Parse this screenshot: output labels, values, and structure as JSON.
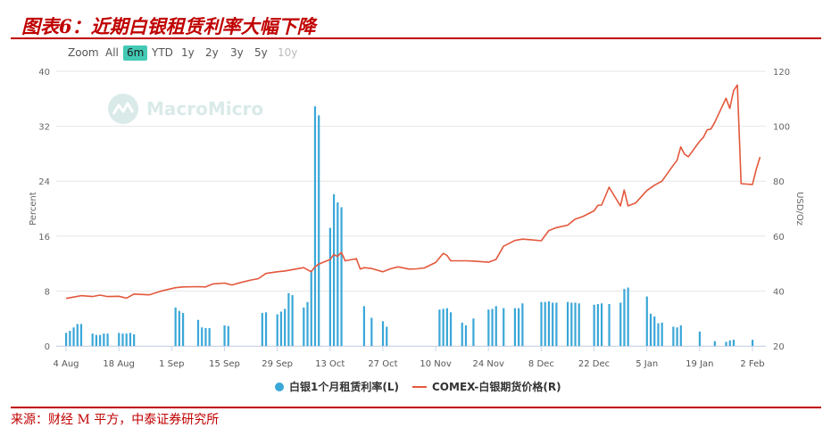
{
  "header": {
    "title": "图表6：近期白银租赁利率大幅下降"
  },
  "footer": {
    "source": "来源：财经 M 平方，中泰证券研究所"
  },
  "range_selector": {
    "zoom_label": "Zoom",
    "buttons": [
      "All",
      "6m",
      "YTD",
      "1y",
      "2y",
      "3y",
      "5y",
      "10y"
    ],
    "active": "6m",
    "disabled": [
      "10y"
    ]
  },
  "watermark": {
    "text": "MacroMicro"
  },
  "colors": {
    "bar": "#3aa7d8",
    "line": "#e3583c",
    "accent": "#43c9b4",
    "title": "#c00000"
  },
  "chart_data": {
    "type": "bar+line",
    "left_axis": {
      "label": "Percent",
      "ticks": [
        "0",
        "8",
        "16",
        "24",
        "32",
        "40"
      ],
      "ylim": [
        0,
        40
      ]
    },
    "right_axis": {
      "label": "USD/Oz",
      "ticks": [
        "20",
        "40",
        "60",
        "80",
        "100",
        "120"
      ],
      "ylim": [
        20,
        120
      ]
    },
    "x_axis": {
      "range": [
        "2025-08-04",
        "2026-02-04"
      ],
      "ticks": [
        {
          "label": "4 Aug",
          "date": "2025-08-04"
        },
        {
          "label": "18 Aug",
          "date": "2025-08-18"
        },
        {
          "label": "1 Sep",
          "date": "2025-09-01"
        },
        {
          "label": "15 Sep",
          "date": "2025-09-15"
        },
        {
          "label": "29 Sep",
          "date": "2025-09-29"
        },
        {
          "label": "13 Oct",
          "date": "2025-10-13"
        },
        {
          "label": "27 Oct",
          "date": "2025-10-27"
        },
        {
          "label": "10 Nov",
          "date": "2025-11-10"
        },
        {
          "label": "24 Nov",
          "date": "2025-11-24"
        },
        {
          "label": "8 Dec",
          "date": "2025-12-08"
        },
        {
          "label": "22 Dec",
          "date": "2025-12-22"
        },
        {
          "label": "5 Jan",
          "date": "2026-01-05"
        },
        {
          "label": "19 Jan",
          "date": "2026-01-19"
        },
        {
          "label": "2 Feb",
          "date": "2026-02-02"
        }
      ]
    },
    "series": [
      {
        "name": "白银1个月租赁利率(L)",
        "type": "bar",
        "axis": "left",
        "data": [
          [
            "2025-08-04",
            1.9
          ],
          [
            "2025-08-05",
            2.2
          ],
          [
            "2025-08-06",
            2.7
          ],
          [
            "2025-08-07",
            3.2
          ],
          [
            "2025-08-08",
            3.2
          ],
          [
            "2025-08-11",
            1.8
          ],
          [
            "2025-08-12",
            1.6
          ],
          [
            "2025-08-13",
            1.6
          ],
          [
            "2025-08-14",
            1.8
          ],
          [
            "2025-08-15",
            1.8
          ],
          [
            "2025-08-18",
            1.9
          ],
          [
            "2025-08-19",
            1.8
          ],
          [
            "2025-08-20",
            1.8
          ],
          [
            "2025-08-21",
            1.9
          ],
          [
            "2025-08-22",
            1.7
          ],
          [
            "2025-08-25",
            0.0
          ],
          [
            "2025-08-26",
            0.0
          ],
          [
            "2025-08-27",
            0.0
          ],
          [
            "2025-08-28",
            0.0
          ],
          [
            "2025-08-29",
            0.0
          ],
          [
            "2025-09-02",
            5.6
          ],
          [
            "2025-09-03",
            5.1
          ],
          [
            "2025-09-04",
            4.8
          ],
          [
            "2025-09-08",
            3.8
          ],
          [
            "2025-09-09",
            2.7
          ],
          [
            "2025-09-10",
            2.6
          ],
          [
            "2025-09-11",
            2.6
          ],
          [
            "2025-09-15",
            3.0
          ],
          [
            "2025-09-16",
            2.9
          ],
          [
            "2025-09-25",
            4.8
          ],
          [
            "2025-09-26",
            4.9
          ],
          [
            "2025-09-29",
            4.6
          ],
          [
            "2025-09-30",
            5.0
          ],
          [
            "2025-10-01",
            5.4
          ],
          [
            "2025-10-02",
            7.7
          ],
          [
            "2025-10-03",
            7.4
          ],
          [
            "2025-10-06",
            5.6
          ],
          [
            "2025-10-07",
            6.4
          ],
          [
            "2025-10-08",
            11.0
          ],
          [
            "2025-10-09",
            34.9
          ],
          [
            "2025-10-10",
            33.6
          ],
          [
            "2025-10-13",
            17.2
          ],
          [
            "2025-10-14",
            22.1
          ],
          [
            "2025-10-15",
            20.9
          ],
          [
            "2025-10-16",
            20.2
          ],
          [
            "2025-10-22",
            5.8
          ],
          [
            "2025-10-24",
            4.1
          ],
          [
            "2025-10-27",
            3.6
          ],
          [
            "2025-10-28",
            2.8
          ],
          [
            "2025-11-11",
            5.3
          ],
          [
            "2025-11-12",
            5.4
          ],
          [
            "2025-11-13",
            5.5
          ],
          [
            "2025-11-14",
            4.9
          ],
          [
            "2025-11-17",
            3.4
          ],
          [
            "2025-11-18",
            3.0
          ],
          [
            "2025-11-20",
            4.0
          ],
          [
            "2025-11-24",
            5.3
          ],
          [
            "2025-11-25",
            5.4
          ],
          [
            "2025-11-26",
            5.8
          ],
          [
            "2025-11-28",
            5.5
          ],
          [
            "2025-12-01",
            5.5
          ],
          [
            "2025-12-02",
            5.5
          ],
          [
            "2025-12-03",
            6.2
          ],
          [
            "2025-12-08",
            6.4
          ],
          [
            "2025-12-09",
            6.4
          ],
          [
            "2025-12-10",
            6.5
          ],
          [
            "2025-12-11",
            6.3
          ],
          [
            "2025-12-12",
            6.3
          ],
          [
            "2025-12-15",
            6.4
          ],
          [
            "2025-12-16",
            6.3
          ],
          [
            "2025-12-17",
            6.3
          ],
          [
            "2025-12-18",
            6.2
          ],
          [
            "2025-12-22",
            6.0
          ],
          [
            "2025-12-23",
            6.1
          ],
          [
            "2025-12-24",
            6.2
          ],
          [
            "2025-12-26",
            6.1
          ],
          [
            "2025-12-29",
            6.3
          ],
          [
            "2025-12-30",
            8.3
          ],
          [
            "2025-12-31",
            8.5
          ],
          [
            "2026-01-05",
            7.2
          ],
          [
            "2026-01-06",
            4.7
          ],
          [
            "2026-01-07",
            4.3
          ],
          [
            "2026-01-08",
            3.3
          ],
          [
            "2026-01-09",
            3.4
          ],
          [
            "2026-01-12",
            2.8
          ],
          [
            "2026-01-13",
            2.7
          ],
          [
            "2026-01-14",
            3.0
          ],
          [
            "2026-01-19",
            2.1
          ],
          [
            "2026-01-23",
            0.7
          ],
          [
            "2026-01-26",
            0.6
          ],
          [
            "2026-01-27",
            0.8
          ],
          [
            "2026-01-28",
            0.9
          ],
          [
            "2026-02-02",
            0.9
          ]
        ]
      },
      {
        "name": "COMEX-白银期货价格(R)",
        "type": "line",
        "axis": "right",
        "data": [
          [
            "2025-08-04",
            37.3
          ],
          [
            "2025-08-06",
            37.8
          ],
          [
            "2025-08-08",
            38.3
          ],
          [
            "2025-08-11",
            38.0
          ],
          [
            "2025-08-13",
            38.5
          ],
          [
            "2025-08-15",
            38.0
          ],
          [
            "2025-08-18",
            38.1
          ],
          [
            "2025-08-20",
            37.4
          ],
          [
            "2025-08-22",
            38.9
          ],
          [
            "2025-08-26",
            38.6
          ],
          [
            "2025-08-29",
            39.9
          ],
          [
            "2025-09-02",
            41.2
          ],
          [
            "2025-09-04",
            41.5
          ],
          [
            "2025-09-08",
            41.6
          ],
          [
            "2025-09-10",
            41.5
          ],
          [
            "2025-09-12",
            42.6
          ],
          [
            "2025-09-15",
            42.9
          ],
          [
            "2025-09-17",
            42.2
          ],
          [
            "2025-09-19",
            43.0
          ],
          [
            "2025-09-22",
            44.0
          ],
          [
            "2025-09-24",
            44.5
          ],
          [
            "2025-09-26",
            46.4
          ],
          [
            "2025-09-29",
            47.0
          ],
          [
            "2025-10-01",
            47.3
          ],
          [
            "2025-10-03",
            47.8
          ],
          [
            "2025-10-06",
            48.5
          ],
          [
            "2025-10-08",
            47.0
          ],
          [
            "2025-10-09",
            48.8
          ],
          [
            "2025-10-10",
            49.8
          ],
          [
            "2025-10-13",
            51.5
          ],
          [
            "2025-10-14",
            53.3
          ],
          [
            "2025-10-15",
            52.6
          ],
          [
            "2025-10-16",
            54.1
          ],
          [
            "2025-10-17",
            51.0
          ],
          [
            "2025-10-20",
            51.8
          ],
          [
            "2025-10-21",
            48.0
          ],
          [
            "2025-10-22",
            48.5
          ],
          [
            "2025-10-24",
            48.2
          ],
          [
            "2025-10-27",
            47.0
          ],
          [
            "2025-10-29",
            48.1
          ],
          [
            "2025-10-31",
            48.8
          ],
          [
            "2025-11-03",
            48.0
          ],
          [
            "2025-11-05",
            48.1
          ],
          [
            "2025-11-07",
            48.4
          ],
          [
            "2025-11-10",
            50.4
          ],
          [
            "2025-11-12",
            53.7
          ],
          [
            "2025-11-13",
            53.0
          ],
          [
            "2025-11-14",
            51.0
          ],
          [
            "2025-11-18",
            51.0
          ],
          [
            "2025-11-20",
            50.9
          ],
          [
            "2025-11-24",
            50.5
          ],
          [
            "2025-11-26",
            51.5
          ],
          [
            "2025-11-28",
            56.3
          ],
          [
            "2025-12-01",
            58.4
          ],
          [
            "2025-12-03",
            58.9
          ],
          [
            "2025-12-05",
            58.7
          ],
          [
            "2025-12-08",
            58.3
          ],
          [
            "2025-12-10",
            62.0
          ],
          [
            "2025-12-12",
            63.1
          ],
          [
            "2025-12-15",
            64.0
          ],
          [
            "2025-12-17",
            66.2
          ],
          [
            "2025-12-19",
            67.1
          ],
          [
            "2025-12-22",
            69.2
          ],
          [
            "2025-12-23",
            71.2
          ],
          [
            "2025-12-24",
            71.3
          ],
          [
            "2025-12-26",
            77.8
          ],
          [
            "2025-12-29",
            71.0
          ],
          [
            "2025-12-30",
            76.8
          ],
          [
            "2025-12-31",
            71.0
          ],
          [
            "2026-01-02",
            72.0
          ],
          [
            "2026-01-05",
            76.6
          ],
          [
            "2026-01-07",
            78.5
          ],
          [
            "2026-01-09",
            80.0
          ],
          [
            "2026-01-12",
            85.8
          ],
          [
            "2026-01-13",
            87.6
          ],
          [
            "2026-01-14",
            92.5
          ],
          [
            "2026-01-15",
            89.8
          ],
          [
            "2026-01-16",
            88.9
          ],
          [
            "2026-01-19",
            94.5
          ],
          [
            "2026-01-20",
            96.0
          ],
          [
            "2026-01-21",
            98.7
          ],
          [
            "2026-01-22",
            99.0
          ],
          [
            "2026-01-23",
            101.4
          ],
          [
            "2026-01-26",
            110.2
          ],
          [
            "2026-01-27",
            106.5
          ],
          [
            "2026-01-28",
            113.0
          ],
          [
            "2026-01-29",
            115.0
          ],
          [
            "2026-01-30",
            79.1
          ],
          [
            "2026-02-02",
            78.8
          ],
          [
            "2026-02-03",
            84.3
          ],
          [
            "2026-02-04",
            88.8
          ]
        ]
      }
    ],
    "legend": {
      "position": "bottom-center"
    },
    "grid": {
      "horizontal": true,
      "vertical": false
    }
  }
}
